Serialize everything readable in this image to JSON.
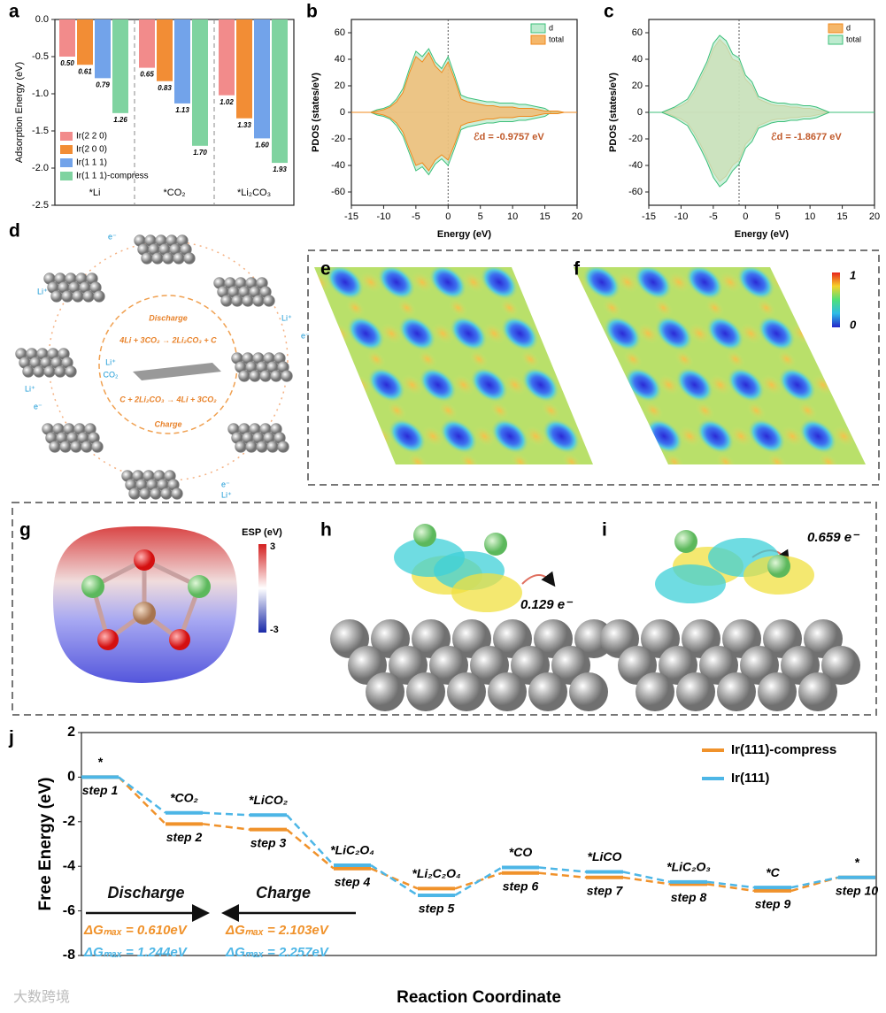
{
  "panel_labels": [
    "a",
    "b",
    "c",
    "d",
    "e",
    "f",
    "g",
    "h",
    "i",
    "j"
  ],
  "cycle": {
    "discharge": "Discharge",
    "eq1": "4Li + 3CO₂ → 2Li₂CO₃ + C",
    "li": "Li⁺",
    "co2": "CO₂",
    "eq2": "C + 2Li₂CO₃ → 4Li + 3CO₂",
    "charge": "Charge",
    "ions": [
      "e⁻",
      "Li⁺",
      "Li⁺",
      "e⁻",
      "Li⁺",
      "e⁻",
      "e⁻",
      "Li⁺"
    ]
  },
  "colorbar_ef": [
    "1",
    "0"
  ],
  "esp": {
    "title": "ESP (eV)",
    "ticks": [
      "3",
      "-3"
    ]
  },
  "charge_h": "0.129 e⁻",
  "charge_i": "0.659 e⁻",
  "watermark": "大数跨境",
  "chart_data": [
    {
      "type": "bar",
      "ylabel": "Adsorption Energy (eV)",
      "categories": [
        "*Li",
        "*CO₂",
        "*Li₂CO₃"
      ],
      "series": [
        {
          "name": "Ir(2 2 0)",
          "color": "#f28b8b",
          "values": [
            -0.5,
            -0.65,
            -1.02
          ],
          "value_labels": [
            "0.50",
            "0.65",
            "1.02"
          ]
        },
        {
          "name": "Ir(2 0 0)",
          "color": "#f28d35",
          "values": [
            -0.61,
            -0.83,
            -1.33
          ],
          "value_labels": [
            "0.61",
            "0.83",
            "1.33"
          ]
        },
        {
          "name": "Ir(1 1 1)",
          "color": "#72a3ea",
          "values": [
            -0.79,
            -1.13,
            -1.6
          ],
          "value_labels": [
            "0.79",
            "1.13",
            "1.60"
          ]
        },
        {
          "name": "Ir(1 1 1)-compress",
          "color": "#7fd3a0",
          "values": [
            -1.26,
            -1.7,
            -1.93
          ],
          "value_labels": [
            "1.26",
            "1.70",
            "1.93"
          ]
        }
      ],
      "ylim": [
        -2.5,
        0
      ],
      "yticks": [
        -2.5,
        {
          "value": -2,
          "label": "-2.0"
        },
        -1.5,
        {
          "value": -1,
          "label": "-1.0"
        },
        -0.5,
        {
          "value": 0,
          "label": "0.0"
        }
      ],
      "legend": "lower left"
    },
    {
      "type": "area",
      "xlabel": "Energy (eV)",
      "ylabel": "PDOS (states/eV)",
      "annotation": "ℰd = -0.9757 eV",
      "vline": 0,
      "x": [
        -15,
        -14,
        -13,
        -12,
        -11,
        -10,
        -9,
        -8,
        -7,
        -6,
        -5,
        -4,
        -3,
        -2,
        -1,
        0,
        1,
        2,
        3,
        4,
        5,
        6,
        7,
        8,
        9,
        10,
        11,
        12,
        13,
        14,
        15,
        16,
        17,
        18,
        19,
        20
      ],
      "series": [
        {
          "name": "d",
          "color": "#3dbf7a",
          "fill": "#bdebcf",
          "values": [
            0,
            0,
            0,
            0,
            2,
            3,
            5,
            10,
            18,
            33,
            46,
            42,
            48,
            38,
            33,
            42,
            28,
            13,
            11,
            10,
            9,
            8,
            8,
            7,
            7,
            7,
            6,
            6,
            5,
            4,
            3,
            0,
            0,
            0,
            0,
            0
          ],
          "values_down": [
            0,
            0,
            0,
            0,
            -2,
            -3,
            -5,
            -10,
            -18,
            -31,
            -44,
            -41,
            -47,
            -39,
            -35,
            -40,
            -27,
            -13,
            -11,
            -10,
            -9,
            -8,
            -8,
            -7,
            -7,
            -7,
            -6,
            -6,
            -5,
            -4,
            -3,
            0,
            0,
            0,
            0,
            0
          ]
        },
        {
          "name": "total",
          "color": "#f08a1e",
          "fill": "#f5b76a",
          "values": [
            0,
            0,
            0,
            0,
            1,
            2,
            4,
            8,
            15,
            30,
            42,
            38,
            45,
            35,
            30,
            38,
            25,
            10,
            8,
            7,
            6,
            5,
            5,
            4,
            4,
            4,
            3,
            3,
            3,
            2,
            1,
            1,
            1,
            0,
            0,
            0
          ],
          "values_down": [
            0,
            0,
            0,
            0,
            -1,
            -2,
            -4,
            -8,
            -15,
            -28,
            -40,
            -38,
            -44,
            -36,
            -32,
            -36,
            -24,
            -10,
            -8,
            -7,
            -6,
            -5,
            -5,
            -4,
            -4,
            -4,
            -3,
            -3,
            -3,
            -2,
            -1,
            -1,
            -1,
            0,
            0,
            0
          ]
        }
      ],
      "xlim": [
        -15,
        20
      ],
      "xticks": [
        -15,
        -10,
        -5,
        0,
        5,
        10,
        15,
        20
      ],
      "ylim": [
        -70,
        70
      ],
      "yticks": [
        -60,
        -40,
        -20,
        0,
        20,
        40,
        60
      ],
      "legend": "upper right"
    },
    {
      "type": "area",
      "xlabel": "Energy (eV)",
      "ylabel": "PDOS (states/eV)",
      "annotation": "ℰd = -1.8677 eV",
      "vline": -1,
      "x": [
        -15,
        -14,
        -13,
        -12,
        -11,
        -10,
        -9,
        -8,
        -7,
        -6,
        -5,
        -4,
        -3,
        -2,
        -1,
        0,
        1,
        2,
        3,
        4,
        5,
        6,
        7,
        8,
        9,
        10,
        11,
        12,
        13,
        14,
        15,
        16,
        17,
        18,
        19,
        20
      ],
      "series": [
        {
          "name": "d",
          "color": "#f08a1e",
          "fill": "#f5b76a",
          "values": [
            0,
            0,
            0,
            1,
            3,
            5,
            8,
            15,
            25,
            35,
            48,
            55,
            50,
            40,
            38,
            25,
            20,
            10,
            8,
            6,
            5,
            5,
            4,
            4,
            3,
            3,
            2,
            1,
            0,
            0,
            0,
            0,
            0,
            0,
            0,
            0
          ],
          "values_down": [
            0,
            0,
            0,
            -1,
            -3,
            -5,
            -8,
            -15,
            -24,
            -34,
            -45,
            -52,
            -48,
            -40,
            -36,
            -24,
            -19,
            -10,
            -8,
            -6,
            -5,
            -5,
            -4,
            -4,
            -3,
            -3,
            -2,
            -1,
            0,
            0,
            0,
            0,
            0,
            0,
            0,
            0
          ]
        },
        {
          "name": "total",
          "color": "#3dbf7a",
          "fill": "#bdebcf",
          "values": [
            0,
            0,
            0,
            2,
            4,
            7,
            10,
            18,
            28,
            38,
            52,
            58,
            54,
            44,
            41,
            28,
            23,
            12,
            10,
            8,
            7,
            7,
            6,
            6,
            5,
            5,
            4,
            2,
            0,
            0,
            0,
            0,
            0,
            0,
            0,
            0
          ],
          "values_down": [
            0,
            0,
            0,
            -2,
            -4,
            -7,
            -10,
            -18,
            -27,
            -37,
            -49,
            -56,
            -52,
            -44,
            -39,
            -27,
            -22,
            -12,
            -10,
            -8,
            -7,
            -7,
            -6,
            -6,
            -5,
            -5,
            -4,
            -2,
            0,
            0,
            0,
            0,
            0,
            0,
            0,
            0
          ]
        }
      ],
      "xlim": [
        -15,
        20
      ],
      "xticks": [
        -15,
        -10,
        -5,
        0,
        5,
        10,
        15,
        20
      ],
      "ylim": [
        -70,
        70
      ],
      "yticks": [
        -60,
        -40,
        -20,
        0,
        20,
        40,
        60
      ],
      "legend": "upper right"
    },
    {
      "type": "step",
      "xlabel": "Reaction Coordinate",
      "ylabel": "Free Energy (eV)",
      "categories": [
        "step 1",
        "step 2",
        "step 3",
        "step 4",
        "step 5",
        "step 6",
        "step 7",
        "step 8",
        "step 9",
        "step 10"
      ],
      "species": [
        "*",
        "*CO₂",
        "*LiCO₂",
        "*LiC₂O₄",
        "*Li₂C₂O₄",
        "*CO",
        "*LiCO",
        "*LiC₂O₃",
        "*C",
        "*"
      ],
      "series": [
        {
          "name": "Ir(111)-compress",
          "color": "#f0922b",
          "values": [
            0,
            -2.1,
            -2.35,
            -4.1,
            -5.0,
            -4.3,
            -4.5,
            -4.8,
            -5.1,
            -4.5
          ]
        },
        {
          "name": "Ir(111)",
          "color": "#4db6e6",
          "values": [
            0,
            -1.6,
            -1.7,
            -3.95,
            -5.3,
            -4.05,
            -4.25,
            -4.7,
            -4.95,
            -4.5
          ]
        }
      ],
      "annotations": [
        "Discharge",
        "Charge",
        "ΔGₘₐₓ = 0.610eV",
        "ΔGₘₐₓ = 1.244eV",
        "ΔGₘₐₓ = 2.103eV",
        "ΔGₘₐₓ = 2.257eV"
      ],
      "ylim": [
        -8,
        2
      ],
      "yticks": [
        -8,
        -6,
        -4,
        -2,
        0,
        2
      ],
      "legend": "upper right"
    }
  ]
}
